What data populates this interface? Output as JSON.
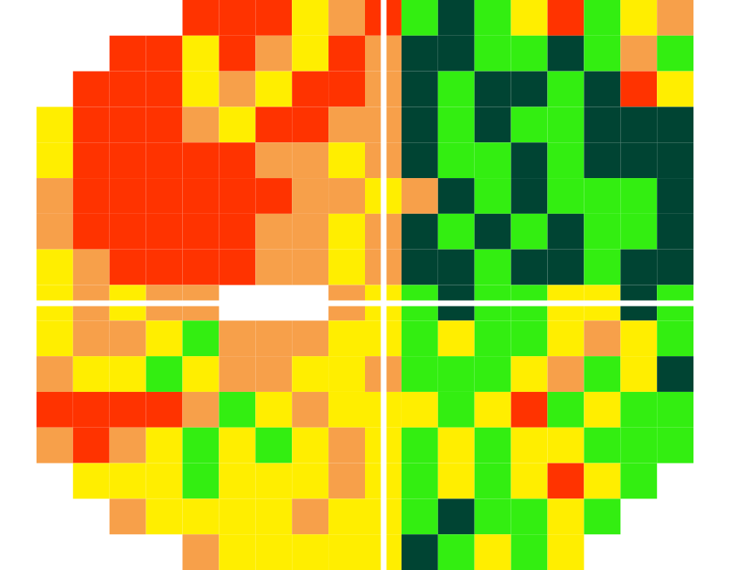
{
  "chart_data": {
    "type": "heatmap",
    "tick_labels": false,
    "levels": [
      1,
      2,
      3,
      4,
      5
    ],
    "colors": [
      "#ff3300",
      "#f7a04a",
      "#ffee00",
      "#33ee11",
      "#004433"
    ],
    "cells": [
      [
        null,
        null,
        null,
        null,
        null,
        1,
        1,
        1,
        3,
        2,
        1,
        4,
        5,
        4,
        3,
        1,
        4,
        3,
        2,
        null
      ],
      [
        null,
        null,
        null,
        1,
        1,
        3,
        1,
        2,
        3,
        1,
        2,
        5,
        5,
        4,
        4,
        5,
        4,
        2,
        4,
        null
      ],
      [
        null,
        null,
        1,
        1,
        1,
        3,
        2,
        3,
        1,
        1,
        2,
        5,
        4,
        5,
        5,
        4,
        5,
        1,
        3,
        null
      ],
      [
        null,
        3,
        1,
        1,
        1,
        2,
        3,
        1,
        1,
        2,
        2,
        5,
        4,
        5,
        4,
        4,
        5,
        5,
        5,
        null
      ],
      [
        null,
        3,
        1,
        1,
        1,
        1,
        1,
        2,
        2,
        3,
        2,
        5,
        4,
        4,
        5,
        4,
        5,
        5,
        5,
        null
      ],
      [
        null,
        2,
        1,
        1,
        1,
        1,
        1,
        1,
        2,
        2,
        3,
        2,
        5,
        4,
        5,
        4,
        4,
        4,
        5,
        null
      ],
      [
        null,
        2,
        1,
        1,
        1,
        1,
        1,
        2,
        2,
        3,
        2,
        5,
        4,
        5,
        4,
        5,
        4,
        4,
        5,
        null
      ],
      [
        null,
        3,
        2,
        1,
        1,
        1,
        1,
        2,
        2,
        3,
        2,
        5,
        5,
        4,
        5,
        5,
        4,
        5,
        5,
        null
      ],
      [
        null,
        3,
        2,
        3,
        2,
        2,
        null,
        null,
        null,
        2,
        3,
        4,
        5,
        4,
        4,
        3,
        3,
        5,
        4,
        null
      ],
      [
        null,
        3,
        2,
        2,
        3,
        4,
        2,
        2,
        2,
        3,
        3,
        4,
        3,
        4,
        4,
        3,
        2,
        3,
        4,
        null
      ],
      [
        null,
        2,
        3,
        3,
        4,
        3,
        2,
        2,
        3,
        3,
        2,
        4,
        4,
        4,
        3,
        2,
        4,
        3,
        5,
        null
      ],
      [
        null,
        1,
        1,
        1,
        1,
        2,
        4,
        3,
        2,
        3,
        3,
        3,
        4,
        3,
        1,
        4,
        3,
        4,
        4,
        null
      ],
      [
        null,
        2,
        1,
        2,
        3,
        4,
        3,
        4,
        3,
        2,
        3,
        4,
        3,
        4,
        3,
        3,
        4,
        4,
        4,
        null
      ],
      [
        null,
        null,
        3,
        3,
        3,
        4,
        3,
        3,
        3,
        2,
        3,
        4,
        3,
        4,
        3,
        1,
        3,
        4,
        null,
        null
      ],
      [
        null,
        null,
        null,
        2,
        3,
        3,
        3,
        3,
        2,
        3,
        3,
        4,
        5,
        4,
        4,
        3,
        4,
        null,
        null,
        null
      ],
      [
        null,
        null,
        null,
        null,
        null,
        2,
        3,
        3,
        3,
        3,
        3,
        5,
        4,
        3,
        4,
        3,
        null,
        null,
        null,
        null
      ]
    ]
  }
}
